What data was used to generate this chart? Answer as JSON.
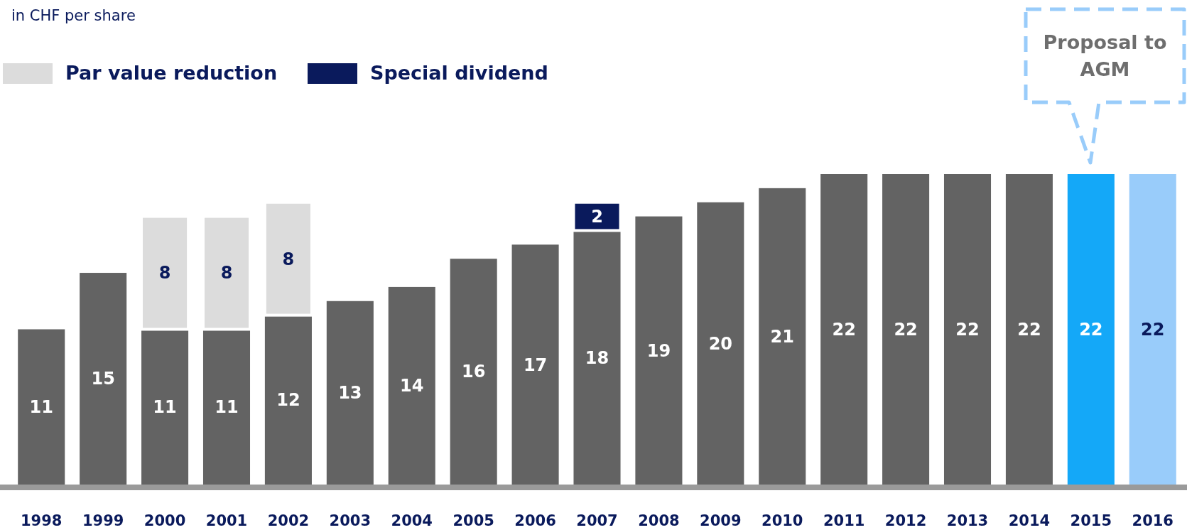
{
  "chart_data": {
    "type": "bar",
    "subtitle": "in CHF per share",
    "categories": [
      "1998",
      "1999",
      "2000",
      "2001",
      "2002",
      "2003",
      "2004",
      "2005",
      "2006",
      "2007",
      "2008",
      "2009",
      "2010",
      "2011",
      "2012",
      "2013",
      "2014",
      "2015",
      "2016"
    ],
    "stacked": true,
    "data_labels": true,
    "legend": "top left",
    "series": [
      {
        "colors": [
          "#636363",
          "#636363",
          "#636363",
          "#636363",
          "#636363",
          "#636363",
          "#636363",
          "#636363",
          "#636363",
          "#636363",
          "#636363",
          "#636363",
          "#636363",
          "#636363",
          "#636363",
          "#636363",
          "#636363",
          "#14a8f8",
          "#99ccfa"
        ],
        "values": [
          11,
          15,
          11,
          11,
          12,
          13,
          14,
          16,
          17,
          18,
          19,
          20,
          21,
          22,
          22,
          22,
          22,
          22,
          22
        ]
      },
      {
        "name": "Par value reduction",
        "color": "#dcdcdc",
        "values": [
          null,
          null,
          8,
          8,
          8,
          null,
          null,
          null,
          null,
          null,
          null,
          null,
          null,
          null,
          null,
          null,
          null,
          null,
          null
        ]
      },
      {
        "name": "Special dividend",
        "color": "#0a1a5c",
        "values": [
          null,
          null,
          null,
          null,
          null,
          null,
          null,
          null,
          null,
          2,
          null,
          null,
          null,
          null,
          null,
          null,
          null,
          null,
          null
        ]
      }
    ],
    "annotations": [
      "Proposal to AGM"
    ]
  }
}
